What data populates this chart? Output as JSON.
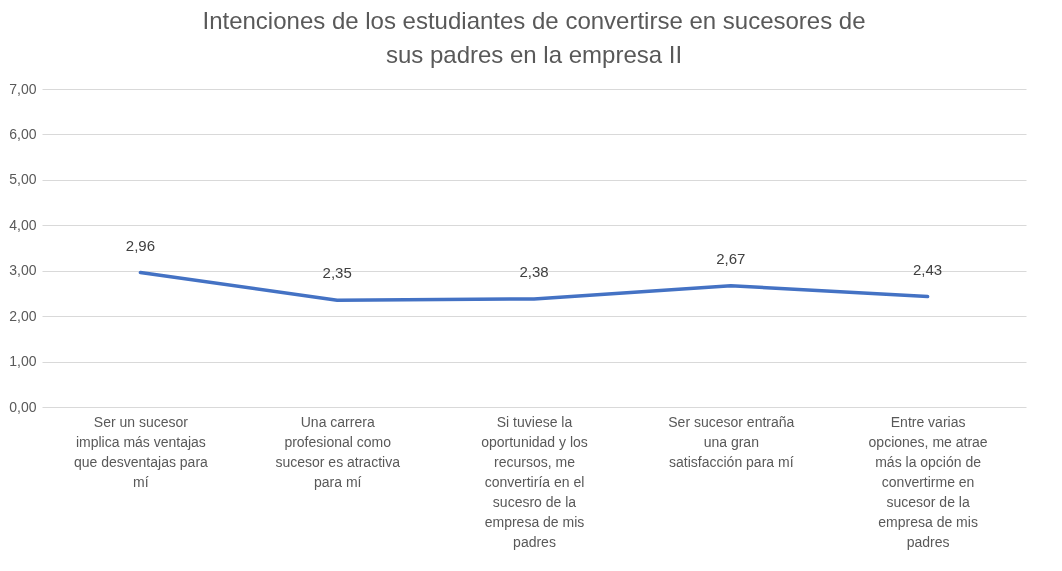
{
  "chart_data": {
    "type": "line",
    "title": "Intenciones de los estudiantes de convertirse en sucesores de sus padres en la empresa II",
    "categories": [
      "Ser un sucesor implica más ventajas que desventajas para mí",
      "Una carrera profesional como sucesor es atractiva para mí",
      "Si tuviese la oportunidad y los recursos, me convertiría en el sucesro de la empresa de mis padres",
      "Ser sucesor entraña una gran satisfacción para mí",
      "Entre varias opciones, me atrae más la opción de convertirme en sucesor de la empresa de mis padres"
    ],
    "series": [
      {
        "color": "#4472c4",
        "values": [
          2.96,
          2.35,
          2.38,
          2.67,
          2.43
        ],
        "value_labels": [
          "2,96",
          "2,35",
          "2,38",
          "2,67",
          "2,43"
        ]
      }
    ],
    "ylim": [
      0,
      7
    ],
    "yticks": [
      {
        "value": 0,
        "label": "0,00"
      },
      {
        "value": 1,
        "label": "1,00"
      },
      {
        "value": 2,
        "label": "2,00"
      },
      {
        "value": 3,
        "label": "3,00"
      },
      {
        "value": 4,
        "label": "4,00"
      },
      {
        "value": 5,
        "label": "5,00"
      },
      {
        "value": 6,
        "label": "6,00"
      },
      {
        "value": 7,
        "label": "7,00"
      }
    ],
    "grid": "y",
    "marker": "none",
    "line_style": "solid"
  }
}
